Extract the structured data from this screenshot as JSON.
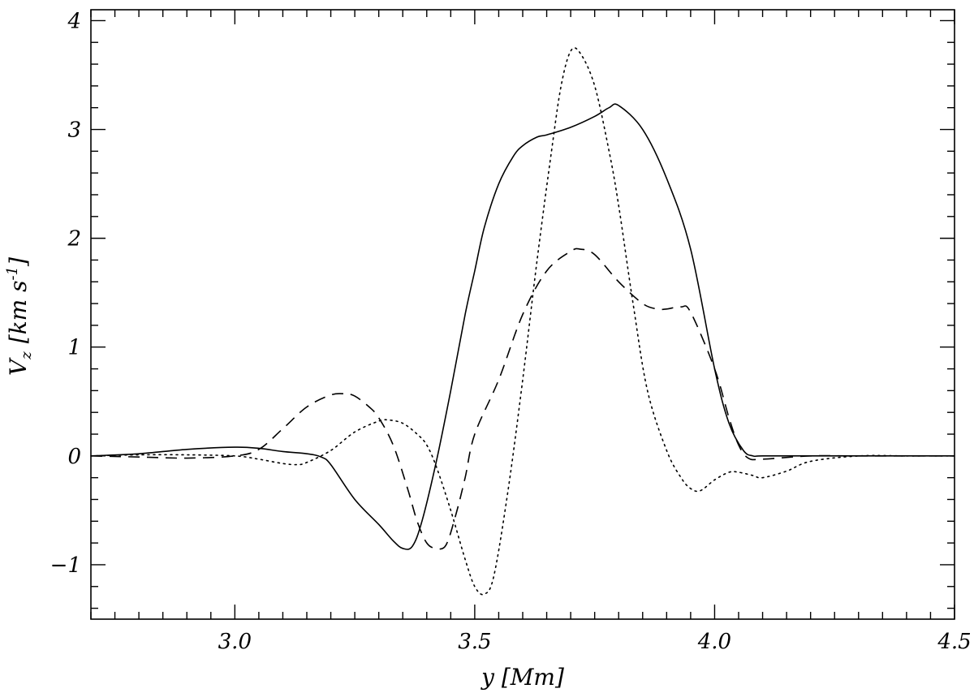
{
  "chart_data": {
    "type": "line",
    "title": "",
    "xlabel": "y [Mm]",
    "ylabel": "Vz [km s-1]",
    "ylabel_parts": {
      "symbol": "V",
      "sub": "z",
      "open": "[km s",
      "sup": "-1",
      "close": "]"
    },
    "xlim": [
      2.7,
      4.5
    ],
    "ylim": [
      -1.5,
      4.1
    ],
    "x_ticks": [
      3.0,
      3.5,
      4.0,
      4.5
    ],
    "x_tick_labels": [
      "3.0",
      "3.5",
      "4.0",
      "4.5"
    ],
    "x_minor_step": 0.05,
    "y_ticks": [
      -1,
      0,
      1,
      2,
      3,
      4
    ],
    "y_tick_labels": [
      "−1",
      "0",
      "1",
      "2",
      "3",
      "4"
    ],
    "y_minor_step": 0.2,
    "grid": false,
    "legend": "none",
    "series": [
      {
        "style": "solid",
        "x": [
          2.7,
          2.8,
          2.9,
          3.0,
          3.05,
          3.1,
          3.15,
          3.18,
          3.2,
          3.25,
          3.3,
          3.33,
          3.35,
          3.37,
          3.39,
          3.42,
          3.45,
          3.48,
          3.5,
          3.52,
          3.55,
          3.58,
          3.6,
          3.63,
          3.65,
          3.7,
          3.75,
          3.78,
          3.8,
          3.85,
          3.9,
          3.95,
          4.0,
          4.03,
          4.06,
          4.08,
          4.1,
          4.2,
          4.3,
          4.4,
          4.5
        ],
        "y": [
          0.0,
          0.02,
          0.06,
          0.08,
          0.07,
          0.04,
          0.02,
          -0.01,
          -0.08,
          -0.4,
          -0.63,
          -0.78,
          -0.85,
          -0.83,
          -0.6,
          -0.05,
          0.6,
          1.3,
          1.7,
          2.1,
          2.5,
          2.75,
          2.85,
          2.93,
          2.95,
          3.02,
          3.12,
          3.2,
          3.22,
          3.0,
          2.55,
          1.9,
          0.8,
          0.3,
          0.05,
          0.0,
          0.0,
          0.0,
          0.0,
          0.0,
          0.0
        ]
      },
      {
        "style": "dashed",
        "x": [
          2.7,
          2.8,
          2.9,
          3.0,
          3.05,
          3.1,
          3.15,
          3.2,
          3.23,
          3.25,
          3.28,
          3.3,
          3.33,
          3.36,
          3.38,
          3.4,
          3.42,
          3.44,
          3.46,
          3.48,
          3.5,
          3.55,
          3.6,
          3.65,
          3.7,
          3.72,
          3.75,
          3.8,
          3.85,
          3.88,
          3.9,
          3.93,
          3.95,
          4.0,
          4.03,
          4.05,
          4.07,
          4.1,
          4.2,
          4.3,
          4.4,
          4.5
        ],
        "y": [
          0.0,
          -0.01,
          -0.02,
          0.0,
          0.06,
          0.25,
          0.45,
          0.56,
          0.57,
          0.55,
          0.45,
          0.35,
          0.1,
          -0.3,
          -0.6,
          -0.8,
          -0.85,
          -0.82,
          -0.55,
          -0.2,
          0.2,
          0.7,
          1.3,
          1.7,
          1.88,
          1.9,
          1.85,
          1.6,
          1.4,
          1.35,
          1.35,
          1.37,
          1.32,
          0.8,
          0.35,
          0.1,
          -0.02,
          -0.03,
          0.0,
          0.0,
          0.0,
          0.0
        ]
      },
      {
        "style": "dotted",
        "x": [
          2.7,
          2.8,
          2.9,
          3.0,
          3.05,
          3.1,
          3.13,
          3.15,
          3.2,
          3.25,
          3.3,
          3.32,
          3.35,
          3.38,
          3.4,
          3.42,
          3.45,
          3.48,
          3.5,
          3.52,
          3.54,
          3.57,
          3.6,
          3.63,
          3.66,
          3.68,
          3.7,
          3.72,
          3.75,
          3.78,
          3.8,
          3.83,
          3.86,
          3.9,
          3.93,
          3.95,
          3.97,
          4.0,
          4.03,
          4.05,
          4.08,
          4.1,
          4.15,
          4.2,
          4.3,
          4.4,
          4.5
        ],
        "y": [
          0.0,
          0.01,
          0.01,
          0.0,
          -0.03,
          -0.07,
          -0.08,
          -0.06,
          0.05,
          0.22,
          0.32,
          0.33,
          0.3,
          0.2,
          0.1,
          -0.1,
          -0.5,
          -0.95,
          -1.2,
          -1.27,
          -1.1,
          -0.3,
          0.7,
          1.8,
          2.8,
          3.4,
          3.72,
          3.7,
          3.4,
          2.8,
          2.3,
          1.4,
          0.6,
          0.05,
          -0.2,
          -0.3,
          -0.32,
          -0.22,
          -0.15,
          -0.15,
          -0.18,
          -0.2,
          -0.14,
          -0.05,
          0.0,
          0.0,
          0.0
        ]
      }
    ]
  }
}
